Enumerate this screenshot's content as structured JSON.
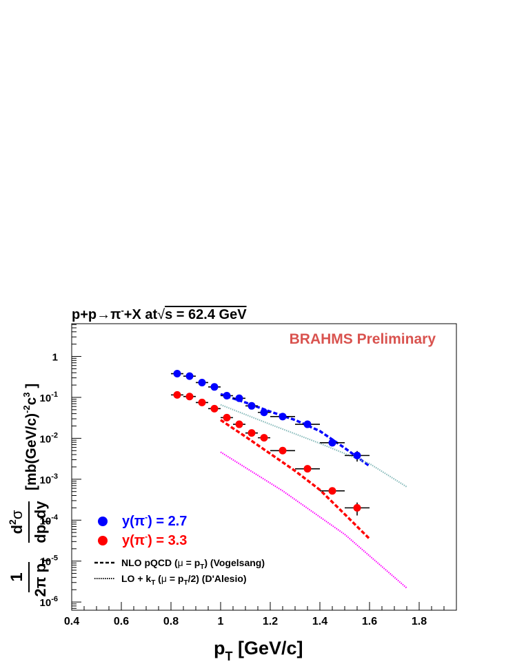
{
  "chart_data": {
    "type": "scatter",
    "title": "p+p→π⁻+X at√s = 62.4 GeV",
    "title_parts": {
      "a": "p+p→π",
      "sup": "-",
      "b": "+X at",
      "root": "√",
      "c": "s = 62.4 GeV"
    },
    "watermark": "BRAHMS Preliminary",
    "xlabel": "p_T [GeV/c]",
    "xlabel_parts": {
      "main": "p",
      "sub": "T",
      "rest": " [GeV/c]"
    },
    "ylabel": "1/(2π p_T) d²σ/(dp_T dy) [mb(GeV/c)⁻²c³]",
    "ylabel_parts": {
      "one": "1",
      "den_a": "2π p",
      "den_sub": "T",
      "num_a": "d",
      "num_sup": "2",
      "num_b": "σ",
      "den2_a": "dp",
      "den2_sub": "T",
      "den2_b": "dy",
      "units_a": "[mb(GeV/c)",
      "units_sup1": "-2",
      "units_b": "c",
      "units_sup2": "3",
      "units_c": " ]"
    },
    "x_range": [
      0.4,
      1.95
    ],
    "y_range_log10": [
      -6.2,
      0.8
    ],
    "x_ticks": [
      "0.4",
      "0.6",
      "0.8",
      "1",
      "1.2",
      "1.4",
      "1.6",
      "1.8"
    ],
    "y_ticks": [
      {
        "exp": 0,
        "base": "1",
        "sup": ""
      },
      {
        "exp": -1,
        "base": "10",
        "sup": "-1"
      },
      {
        "exp": -2,
        "base": "10",
        "sup": "-2"
      },
      {
        "exp": -3,
        "base": "10",
        "sup": "-3"
      },
      {
        "exp": -4,
        "base": "10",
        "sup": "-4"
      },
      {
        "exp": -5,
        "base": "10",
        "sup": "-5"
      },
      {
        "exp": -6,
        "base": "10",
        "sup": "-6"
      }
    ],
    "series": [
      {
        "name": "y(π⁻) = 2.7",
        "legend_parts": {
          "a": "y(π",
          "sup": "-",
          "b": ") = 2.7"
        },
        "color": "#0000ff",
        "points": [
          {
            "x": 0.825,
            "y": 0.38,
            "xerr": 0.025
          },
          {
            "x": 0.875,
            "y": 0.33,
            "xerr": 0.025
          },
          {
            "x": 0.925,
            "y": 0.23,
            "xerr": 0.025
          },
          {
            "x": 0.975,
            "y": 0.18,
            "xerr": 0.025
          },
          {
            "x": 1.025,
            "y": 0.11,
            "xerr": 0.025
          },
          {
            "x": 1.075,
            "y": 0.095,
            "xerr": 0.025
          },
          {
            "x": 1.125,
            "y": 0.062,
            "xerr": 0.025
          },
          {
            "x": 1.175,
            "y": 0.043,
            "xerr": 0.025
          },
          {
            "x": 1.25,
            "y": 0.034,
            "xerr": 0.05
          },
          {
            "x": 1.35,
            "y": 0.022,
            "xerr": 0.05
          },
          {
            "x": 1.45,
            "y": 0.0078,
            "xerr": 0.05
          },
          {
            "x": 1.55,
            "y": 0.0038,
            "xerr": 0.05,
            "yerr": 0.0011
          }
        ]
      },
      {
        "name": "y(π⁻) = 3.3",
        "legend_parts": {
          "a": "y(π",
          "sup": "-",
          "b": ") = 3.3"
        },
        "color": "#ff0000",
        "points": [
          {
            "x": 0.825,
            "y": 0.115,
            "xerr": 0.025
          },
          {
            "x": 0.875,
            "y": 0.105,
            "xerr": 0.025
          },
          {
            "x": 0.925,
            "y": 0.075,
            "xerr": 0.025
          },
          {
            "x": 0.975,
            "y": 0.053,
            "xerr": 0.025
          },
          {
            "x": 1.025,
            "y": 0.032,
            "xerr": 0.025
          },
          {
            "x": 1.075,
            "y": 0.022,
            "xerr": 0.025
          },
          {
            "x": 1.125,
            "y": 0.0135,
            "xerr": 0.025
          },
          {
            "x": 1.175,
            "y": 0.0103,
            "xerr": 0.025
          },
          {
            "x": 1.25,
            "y": 0.005,
            "xerr": 0.05
          },
          {
            "x": 1.35,
            "y": 0.0018,
            "xerr": 0.05
          },
          {
            "x": 1.45,
            "y": 0.00052,
            "xerr": 0.05
          },
          {
            "x": 1.55,
            "y": 0.0002,
            "xerr": 0.05,
            "yerr": 7e-05
          }
        ]
      }
    ],
    "curves": [
      {
        "name": "NLO pQCD y=2.7",
        "color": "#0000ff",
        "style": "dashed",
        "points": [
          [
            1.0,
            0.12
          ],
          [
            1.1,
            0.075
          ],
          [
            1.2,
            0.045
          ],
          [
            1.3,
            0.028
          ],
          [
            1.4,
            0.015
          ],
          [
            1.5,
            0.0058
          ],
          [
            1.6,
            0.0021
          ]
        ]
      },
      {
        "name": "NLO pQCD y=3.3",
        "color": "#ff0000",
        "style": "dashed",
        "points": [
          [
            1.0,
            0.028
          ],
          [
            1.1,
            0.011
          ],
          [
            1.2,
            0.0042
          ],
          [
            1.3,
            0.0016
          ],
          [
            1.4,
            0.00055
          ],
          [
            1.5,
            0.00014
          ],
          [
            1.6,
            3.5e-05
          ]
        ]
      },
      {
        "name": "LO + kT y=2.7",
        "color": "#88bbbb",
        "style": "dotted",
        "points": [
          [
            1.0,
            0.066
          ],
          [
            1.2,
            0.022
          ],
          [
            1.4,
            0.0075
          ],
          [
            1.6,
            0.0024
          ],
          [
            1.75,
            0.00065
          ]
        ]
      },
      {
        "name": "LO + kT y=3.3",
        "color": "#ff00ff",
        "style": "dotted",
        "points": [
          [
            1.0,
            0.0046
          ],
          [
            1.25,
            0.00052
          ],
          [
            1.5,
            4.5e-05
          ],
          [
            1.75,
            2.2e-06
          ]
        ]
      }
    ],
    "legend": {
      "nlo": {
        "a": "NLO pQCD (",
        "mu": "μ",
        "b": " = p",
        "sub": "T",
        "c": ") (Vogelsang)"
      },
      "lo": {
        "a": "LO + k",
        "sub1": "T",
        "b": " (",
        "mu": "μ",
        "c": " = p",
        "sub2": "T",
        "d": "/2) (D'Alesio)"
      }
    }
  }
}
